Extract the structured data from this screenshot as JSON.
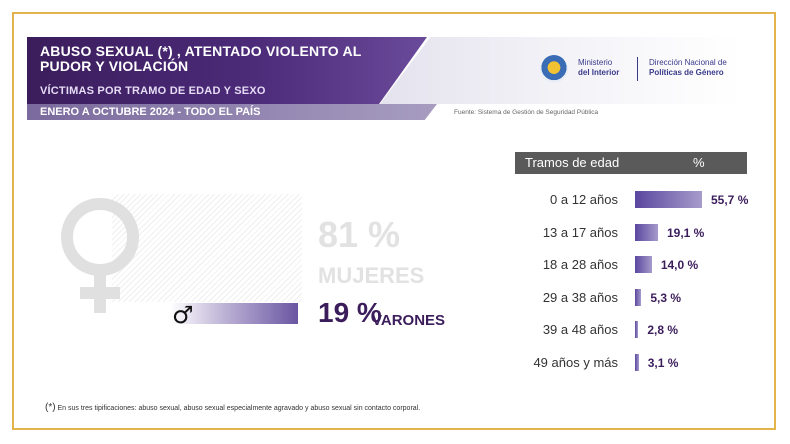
{
  "header": {
    "title": "ABUSO SEXUAL (*) , ATENTADO VIOLENTO AL PUDOR Y VIOLACIÓN",
    "subtitle": "VÍCTIMAS POR TRAMO DE EDAD Y SEXO",
    "period": "ENERO A OCTUBRE 2024 - TODO EL PAÍS",
    "source": "Fuente: Sistema de Gestión de Seguridad Pública"
  },
  "logo": {
    "ministry_line1": "Ministerio",
    "ministry_line2": "del Interior",
    "direction_line1": "Dirección Nacional de",
    "direction_line2": "Políticas de Género"
  },
  "colors": {
    "primary": "#3b1d5c",
    "accent": "#6a56a2",
    "frame": "#e3b44a",
    "muted": "#e2e2e2"
  },
  "sex": {
    "women_pct": "81 %",
    "women_label": "MUJERES",
    "men_pct": "19 %",
    "men_label": "VARONES",
    "women_icon": "female-symbol-icon",
    "men_icon": "male-symbol-icon",
    "men_symbol": "♂"
  },
  "table": {
    "col_age": "Tramos de edad",
    "col_pct": "%"
  },
  "chart_data": [
    {
      "type": "bar",
      "categories": [
        "Mujeres",
        "Varones"
      ],
      "values": [
        81,
        19
      ],
      "unit": "%"
    },
    {
      "type": "bar",
      "orientation": "horizontal",
      "categories": [
        "0 a 12 años",
        "13 a 17 años",
        "18 a 28 años",
        "29 a 38 años",
        "39 a 48 años",
        "49 años y más"
      ],
      "values": [
        55.7,
        19.1,
        14.0,
        5.3,
        2.8,
        3.1
      ],
      "labels": [
        "55,7 %",
        "19,1 %",
        "14,0 %",
        "5,3 %",
        "2,8 %",
        "3,1 %"
      ],
      "unit": "%"
    }
  ],
  "footnote": {
    "marker": "(*)",
    "text": "En sus tres tipificaciones: abuso sexual, abuso sexual especialmente agravado y abuso sexual sin contacto corporal."
  }
}
